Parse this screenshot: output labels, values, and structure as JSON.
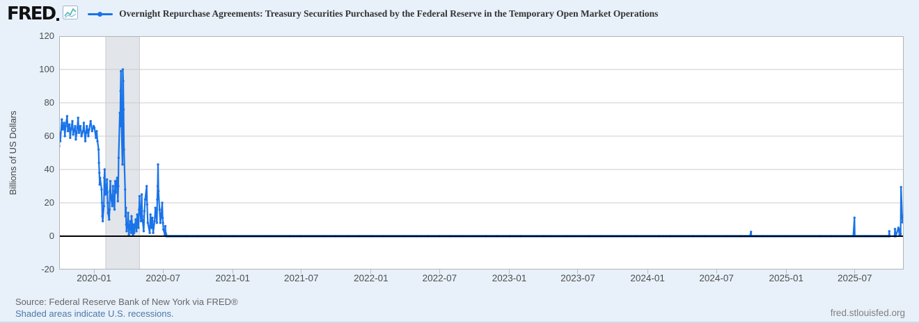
{
  "page": {
    "background": "#e8f1fa"
  },
  "header": {
    "logo_text": "FRED",
    "title": "Overnight Repurchase Agreements: Treasury Securities Purchased by the Federal Reserve in the Temporary Open Market Operations",
    "series_color": "#1a73e8"
  },
  "footer": {
    "source": "Source: Federal Reserve Bank of New York via FRED®",
    "recessions_note": "Shaded areas indicate U.S. recessions.",
    "site": "fred.stlouisfed.org"
  },
  "chart_data": {
    "type": "line",
    "title": "Overnight Repurchase Agreements: Treasury Securities Purchased by the Federal Reserve in the Temporary Open Market Operations",
    "ylabel": "Billions of US Dollars",
    "ylim": [
      -20,
      120
    ],
    "yticks": [
      120,
      100,
      80,
      60,
      40,
      20,
      0,
      -20
    ],
    "xlim": [
      "2019-10-01",
      "2025-11-07"
    ],
    "xticks": [
      "2020-01",
      "2020-07",
      "2021-01",
      "2021-07",
      "2022-01",
      "2022-07",
      "2023-01",
      "2023-07",
      "2024-01",
      "2024-07",
      "2025-01",
      "2025-07"
    ],
    "grid": "horizontal",
    "gridline_color": "#cccccc",
    "frame_color": "#b3b3b3",
    "plot_background": "#ffffff",
    "zero_line": true,
    "zero_line_color": "#000000",
    "line_color": "#1a73e8",
    "legend_position": "top",
    "recession_bands": [
      {
        "start": "2020-02-01",
        "end": "2020-04-30",
        "color": "#e2e5e9"
      }
    ],
    "series": [
      {
        "name": "Overnight Repurchase Agreements: Treasury Securities Purchased by the Federal Reserve in the Temporary Open Market Operations",
        "points": [
          [
            "2019-10-01",
            54
          ],
          [
            "2019-10-02",
            62
          ],
          [
            "2019-10-04",
            57
          ],
          [
            "2019-10-08",
            70
          ],
          [
            "2019-10-10",
            64
          ],
          [
            "2019-10-14",
            68
          ],
          [
            "2019-10-16",
            60
          ],
          [
            "2019-10-18",
            66
          ],
          [
            "2019-10-22",
            72
          ],
          [
            "2019-10-24",
            63
          ],
          [
            "2019-10-28",
            67
          ],
          [
            "2019-10-30",
            59
          ],
          [
            "2019-11-01",
            64
          ],
          [
            "2019-11-05",
            69
          ],
          [
            "2019-11-07",
            61
          ],
          [
            "2019-11-12",
            66
          ],
          [
            "2019-11-14",
            58
          ],
          [
            "2019-11-18",
            65
          ],
          [
            "2019-11-20",
            71
          ],
          [
            "2019-11-22",
            62
          ],
          [
            "2019-11-26",
            66
          ],
          [
            "2019-11-29",
            60
          ],
          [
            "2019-12-03",
            63
          ],
          [
            "2019-12-05",
            68
          ],
          [
            "2019-12-09",
            57
          ],
          [
            "2019-12-11",
            62
          ],
          [
            "2019-12-13",
            66
          ],
          [
            "2019-12-17",
            60
          ],
          [
            "2019-12-19",
            64
          ],
          [
            "2019-12-23",
            69
          ],
          [
            "2019-12-27",
            63
          ],
          [
            "2019-12-31",
            66
          ],
          [
            "2020-01-02",
            65
          ],
          [
            "2020-01-06",
            59
          ],
          [
            "2020-01-08",
            63
          ],
          [
            "2020-01-10",
            57
          ],
          [
            "2020-01-13",
            52
          ],
          [
            "2020-01-14",
            44
          ],
          [
            "2020-01-15",
            38
          ],
          [
            "2020-01-16",
            31
          ],
          [
            "2020-01-17",
            35
          ],
          [
            "2020-01-21",
            28
          ],
          [
            "2020-01-22",
            20
          ],
          [
            "2020-01-23",
            12
          ],
          [
            "2020-01-24",
            9
          ],
          [
            "2020-01-27",
            18
          ],
          [
            "2020-01-28",
            35
          ],
          [
            "2020-01-29",
            40
          ],
          [
            "2020-01-30",
            31
          ],
          [
            "2020-01-31",
            25
          ],
          [
            "2020-02-03",
            29
          ],
          [
            "2020-02-04",
            34
          ],
          [
            "2020-02-05",
            26
          ],
          [
            "2020-02-06",
            20
          ],
          [
            "2020-02-07",
            14
          ],
          [
            "2020-02-10",
            10
          ],
          [
            "2020-02-11",
            16
          ],
          [
            "2020-02-12",
            27
          ],
          [
            "2020-02-13",
            33
          ],
          [
            "2020-02-14",
            25
          ],
          [
            "2020-02-18",
            18
          ],
          [
            "2020-02-19",
            24
          ],
          [
            "2020-02-20",
            30
          ],
          [
            "2020-02-21",
            22
          ],
          [
            "2020-02-24",
            16
          ],
          [
            "2020-02-25",
            27
          ],
          [
            "2020-02-26",
            33
          ],
          [
            "2020-02-27",
            26
          ],
          [
            "2020-02-28",
            31
          ],
          [
            "2020-03-02",
            35
          ],
          [
            "2020-03-03",
            27
          ],
          [
            "2020-03-04",
            21
          ],
          [
            "2020-03-05",
            30
          ],
          [
            "2020-03-06",
            47
          ],
          [
            "2020-03-09",
            74
          ],
          [
            "2020-03-10",
            66
          ],
          [
            "2020-03-11",
            87
          ],
          [
            "2020-03-12",
            99
          ],
          [
            "2020-03-13",
            72
          ],
          [
            "2020-03-16",
            43
          ],
          [
            "2020-03-17",
            100
          ],
          [
            "2020-03-18",
            93
          ],
          [
            "2020-03-19",
            76
          ],
          [
            "2020-03-20",
            52
          ],
          [
            "2020-03-23",
            28
          ],
          [
            "2020-03-24",
            12
          ],
          [
            "2020-03-25",
            17
          ],
          [
            "2020-03-26",
            7
          ],
          [
            "2020-03-27",
            3
          ],
          [
            "2020-03-30",
            8
          ],
          [
            "2020-03-31",
            14
          ],
          [
            "2020-04-01",
            6
          ],
          [
            "2020-04-02",
            1
          ],
          [
            "2020-04-06",
            9
          ],
          [
            "2020-04-08",
            2
          ],
          [
            "2020-04-09",
            12
          ],
          [
            "2020-04-13",
            1
          ],
          [
            "2020-04-14",
            7
          ],
          [
            "2020-04-16",
            2
          ],
          [
            "2020-04-20",
            10
          ],
          [
            "2020-04-22",
            3
          ],
          [
            "2020-04-24",
            13
          ],
          [
            "2020-04-27",
            5
          ],
          [
            "2020-04-29",
            16
          ],
          [
            "2020-04-30",
            24
          ],
          [
            "2020-05-01",
            17
          ],
          [
            "2020-05-04",
            9
          ],
          [
            "2020-05-06",
            25
          ],
          [
            "2020-05-07",
            12
          ],
          [
            "2020-05-11",
            3
          ],
          [
            "2020-05-13",
            15
          ],
          [
            "2020-05-15",
            22
          ],
          [
            "2020-05-19",
            30
          ],
          [
            "2020-05-20",
            19
          ],
          [
            "2020-05-22",
            8
          ],
          [
            "2020-05-27",
            2
          ],
          [
            "2020-05-29",
            13
          ],
          [
            "2020-06-01",
            5
          ],
          [
            "2020-06-03",
            11
          ],
          [
            "2020-06-05",
            2
          ],
          [
            "2020-06-09",
            9
          ],
          [
            "2020-06-11",
            17
          ],
          [
            "2020-06-15",
            8
          ],
          [
            "2020-06-16",
            22
          ],
          [
            "2020-06-17",
            30
          ],
          [
            "2020-06-18",
            43
          ],
          [
            "2020-06-19",
            27
          ],
          [
            "2020-06-22",
            16
          ],
          [
            "2020-06-24",
            8
          ],
          [
            "2020-06-26",
            12
          ],
          [
            "2020-06-29",
            20
          ],
          [
            "2020-06-30",
            11
          ],
          [
            "2020-07-01",
            8
          ],
          [
            "2020-07-02",
            4
          ],
          [
            "2020-07-06",
            1
          ],
          [
            "2020-07-07",
            6
          ],
          [
            "2020-07-08",
            2
          ],
          [
            "2020-07-09",
            1
          ],
          [
            "2020-07-10",
            0
          ],
          [
            "2020-08-03",
            0
          ],
          [
            "2020-09-01",
            0
          ],
          [
            "2020-10-01",
            0
          ],
          [
            "2020-11-02",
            0
          ],
          [
            "2020-12-01",
            0
          ],
          [
            "2021-01-04",
            0
          ],
          [
            "2021-02-01",
            0
          ],
          [
            "2021-03-01",
            0
          ],
          [
            "2021-04-01",
            0
          ],
          [
            "2021-05-03",
            0
          ],
          [
            "2021-06-01",
            0
          ],
          [
            "2021-07-01",
            0
          ],
          [
            "2021-08-02",
            0
          ],
          [
            "2021-09-01",
            0
          ],
          [
            "2021-10-01",
            0
          ],
          [
            "2021-11-01",
            0
          ],
          [
            "2021-12-01",
            0
          ],
          [
            "2022-01-03",
            0
          ],
          [
            "2022-02-01",
            0
          ],
          [
            "2022-03-01",
            0
          ],
          [
            "2022-04-01",
            0
          ],
          [
            "2022-05-02",
            0
          ],
          [
            "2022-06-01",
            0
          ],
          [
            "2022-07-01",
            0
          ],
          [
            "2022-08-01",
            0
          ],
          [
            "2022-09-01",
            0
          ],
          [
            "2022-10-03",
            0
          ],
          [
            "2022-11-01",
            0
          ],
          [
            "2022-12-01",
            0
          ],
          [
            "2023-01-03",
            0
          ],
          [
            "2023-02-01",
            0
          ],
          [
            "2023-03-01",
            0
          ],
          [
            "2023-04-03",
            0
          ],
          [
            "2023-05-01",
            0
          ],
          [
            "2023-06-01",
            0
          ],
          [
            "2023-07-03",
            0
          ],
          [
            "2023-08-01",
            0
          ],
          [
            "2023-09-01",
            0
          ],
          [
            "2023-10-02",
            0
          ],
          [
            "2023-11-01",
            0
          ],
          [
            "2023-12-01",
            0
          ],
          [
            "2024-01-02",
            0
          ],
          [
            "2024-02-01",
            0
          ],
          [
            "2024-03-01",
            0
          ],
          [
            "2024-04-01",
            0
          ],
          [
            "2024-05-01",
            0
          ],
          [
            "2024-06-03",
            0
          ],
          [
            "2024-07-01",
            0
          ],
          [
            "2024-08-01",
            0
          ],
          [
            "2024-09-03",
            0
          ],
          [
            "2024-09-27",
            0
          ],
          [
            "2024-09-30",
            2.6
          ],
          [
            "2024-10-01",
            0
          ],
          [
            "2024-11-01",
            0
          ],
          [
            "2024-12-02",
            0
          ],
          [
            "2025-01-02",
            0
          ],
          [
            "2025-02-03",
            0
          ],
          [
            "2025-03-03",
            0
          ],
          [
            "2025-04-01",
            0
          ],
          [
            "2025-05-01",
            0
          ],
          [
            "2025-06-02",
            0
          ],
          [
            "2025-06-27",
            0
          ],
          [
            "2025-06-30",
            11.1
          ],
          [
            "2025-07-01",
            0
          ],
          [
            "2025-08-01",
            0
          ],
          [
            "2025-09-02",
            0
          ],
          [
            "2025-09-29",
            0
          ],
          [
            "2025-09-30",
            2.9
          ],
          [
            "2025-10-01",
            0
          ],
          [
            "2025-10-14",
            0
          ],
          [
            "2025-10-15",
            4.3
          ],
          [
            "2025-10-17",
            0
          ],
          [
            "2025-10-24",
            5.0
          ],
          [
            "2025-10-27",
            0.6
          ],
          [
            "2025-10-28",
            4.1
          ],
          [
            "2025-10-29",
            0.8
          ],
          [
            "2025-10-30",
            1.5
          ],
          [
            "2025-10-31",
            29.4
          ],
          [
            "2025-11-03",
            12.2
          ],
          [
            "2025-11-04",
            8.3
          ]
        ]
      }
    ]
  }
}
